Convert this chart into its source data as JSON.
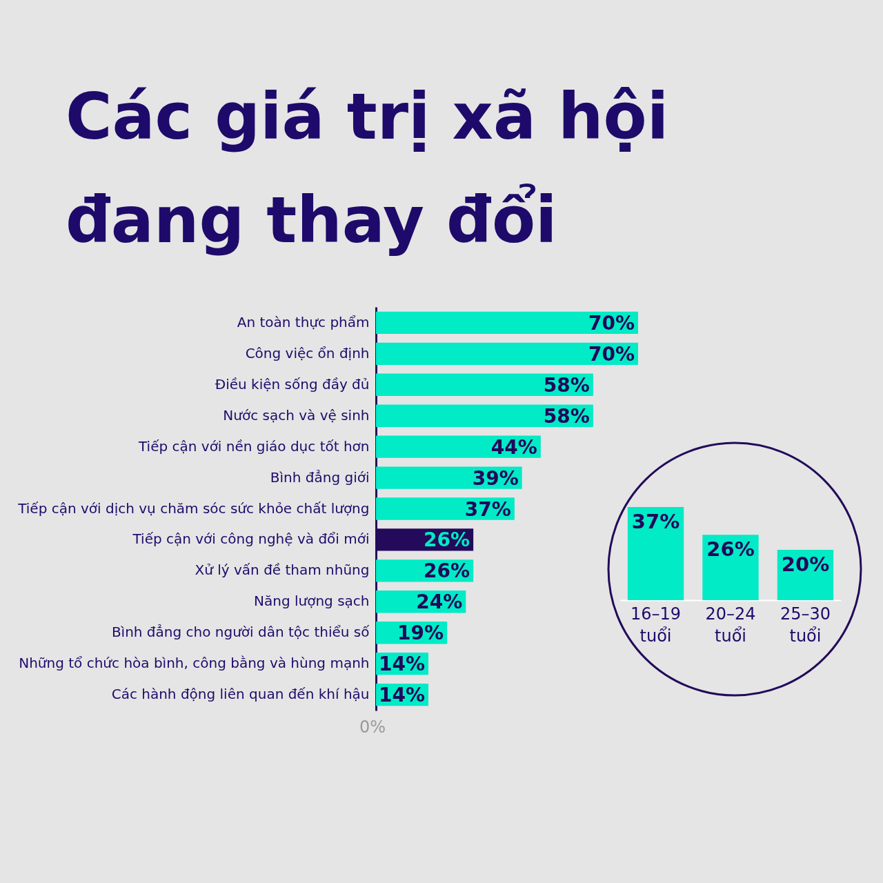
{
  "chart_data": [
    {
      "type": "bar",
      "title": "Các giá trị xã hội đang thay đổi",
      "orientation": "horizontal",
      "categories": [
        "An toàn thực phẩm",
        "Công việc ổn định",
        "Điều kiện sống đầy đủ",
        "Nước sạch và vệ sinh",
        "Tiếp cận với nền giáo dục tốt hơn",
        "Bình đẳng giới",
        "Tiếp cận với dịch vụ chăm sóc sức khỏe chất lượng",
        "Tiếp cận với công nghệ và đổi mới",
        "Xử lý vấn đề tham nhũng",
        "Năng lượng sạch",
        "Bình đẳng cho người dân tộc thiểu số",
        "Những tổ chức hòa bình, công bằng và hùng mạnh",
        "Các hành động liên quan đến khí hậu"
      ],
      "values": [
        70,
        70,
        58,
        58,
        44,
        39,
        37,
        26,
        26,
        24,
        19,
        14,
        14
      ],
      "colors": [
        "#00ebc6",
        "#00ebc6",
        "#00ebc6",
        "#00ebc6",
        "#00ebc6",
        "#00ebc6",
        "#00ebc6",
        "#230a5a",
        "#00ebc6",
        "#00ebc6",
        "#00ebc6",
        "#00ebc6",
        "#00ebc6"
      ],
      "annotations": [
        "0%"
      ],
      "value_labels": [
        "70%",
        "70%",
        "58%",
        "58%",
        "44%",
        "39%",
        "37%",
        "26%",
        "26%",
        "24%",
        "19%",
        "14%",
        "14%"
      ]
    },
    {
      "type": "bar",
      "categories": [
        "16–19 tuổi",
        "20–24 tuổi",
        "25–30 tuổi"
      ],
      "values": [
        37,
        26,
        20
      ],
      "color": "#00ebc6",
      "value_labels": [
        "37%",
        "26%",
        "20%"
      ]
    }
  ]
}
